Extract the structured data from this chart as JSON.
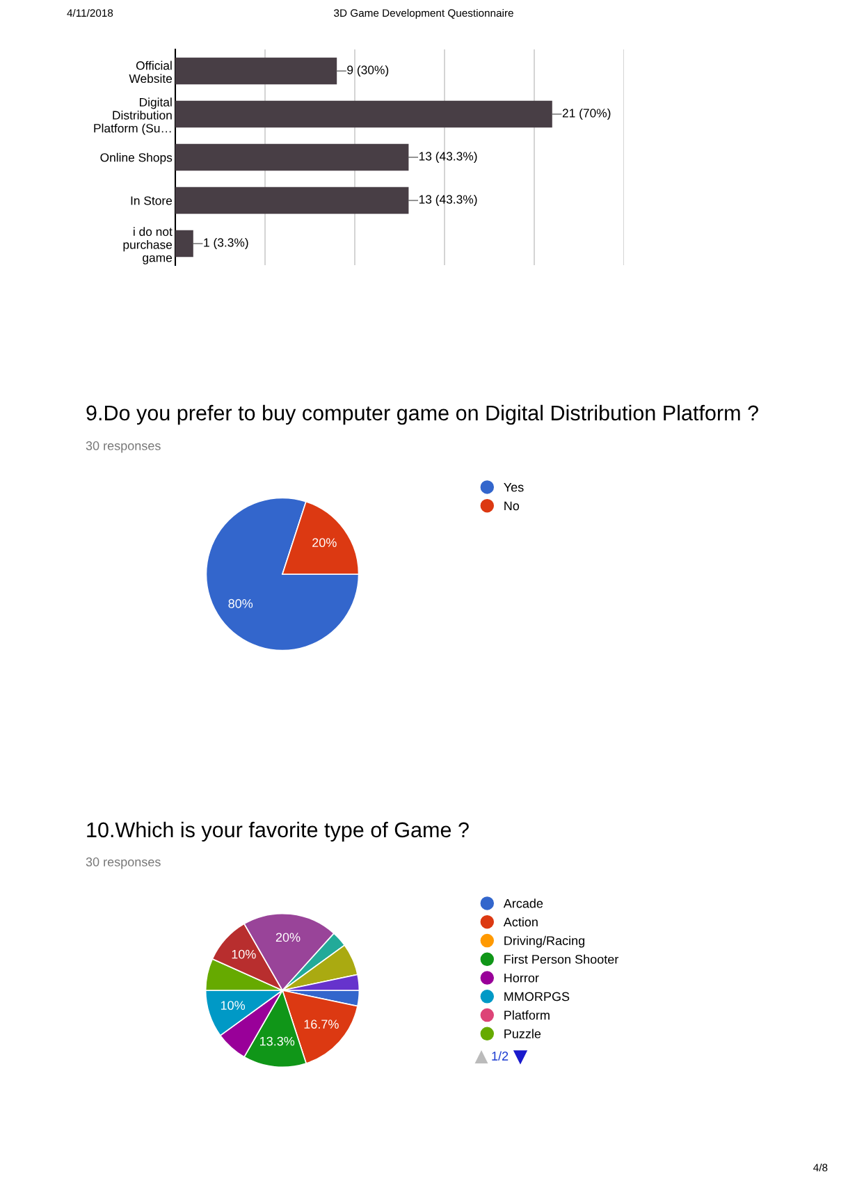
{
  "chart_data": [
    {
      "type": "bar",
      "orientation": "horizontal",
      "categories": [
        "Official\nWebsite",
        "Digital\nDistribution\nPlatform (Su…",
        "Online Shops",
        "In Store",
        "i do not\npurchase\ngame"
      ],
      "values": [
        9,
        21,
        13,
        13,
        1
      ],
      "color": "#483e45",
      "value_labels": [
        "9 (30%)",
        "21 (70%)",
        "13 (43.3%)",
        "13 (43.3%)",
        "1 (3.3%)"
      ],
      "xlim": [
        0,
        25
      ],
      "xticks": [
        {
          "value": 0,
          "label": null
        },
        {
          "value": 5,
          "label": null
        },
        {
          "value": 10,
          "label": null
        },
        {
          "value": 15,
          "label": null
        },
        {
          "value": 20,
          "label": null
        },
        {
          "value": 25,
          "label": null
        }
      ],
      "grid": "x",
      "tick_labels": "y",
      "annotations": [
        "4/11/2018",
        "3D Game Development Questionnaire",
        "4/8"
      ]
    },
    {
      "type": "pie",
      "title": "9.Do you prefer to buy computer game on Digital Distribution Platform ?",
      "subtitle": "30 responses",
      "categories": [
        "Yes",
        "No"
      ],
      "values": [
        80,
        20
      ],
      "colors": [
        "#3366cc",
        "#dc3912"
      ],
      "value_labels": [
        "80%",
        "20%"
      ],
      "legend": "right"
    },
    {
      "type": "pie",
      "title": "10.Which is your favorite type of Game ?",
      "subtitle": "30 responses",
      "categories": [
        "Arcade",
        "Action",
        "Driving/Racing",
        "First Person Shooter",
        "Horror",
        "MMORPGS",
        "Platform",
        "Puzzle",
        null,
        null,
        null,
        null,
        null
      ],
      "values": [
        3.3,
        16.7,
        0,
        13.3,
        6.7,
        10,
        0,
        6.7,
        10,
        20,
        3.3,
        6.7,
        3.3
      ],
      "colors": [
        "#3366cc",
        "#dc3912",
        "#ff9900",
        "#109618",
        "#990099",
        "#0099c6",
        "#dd4477",
        "#66aa00",
        "#b82e2e",
        "#994499",
        "#22aa99",
        "#aaaa11",
        "#6633cc"
      ],
      "value_labels": [
        null,
        "16.7%",
        null,
        "13.3%",
        null,
        "10%",
        null,
        null,
        "10%",
        "20%",
        null,
        null,
        null
      ],
      "legend": "right",
      "annotations": [
        "1/2"
      ]
    }
  ]
}
